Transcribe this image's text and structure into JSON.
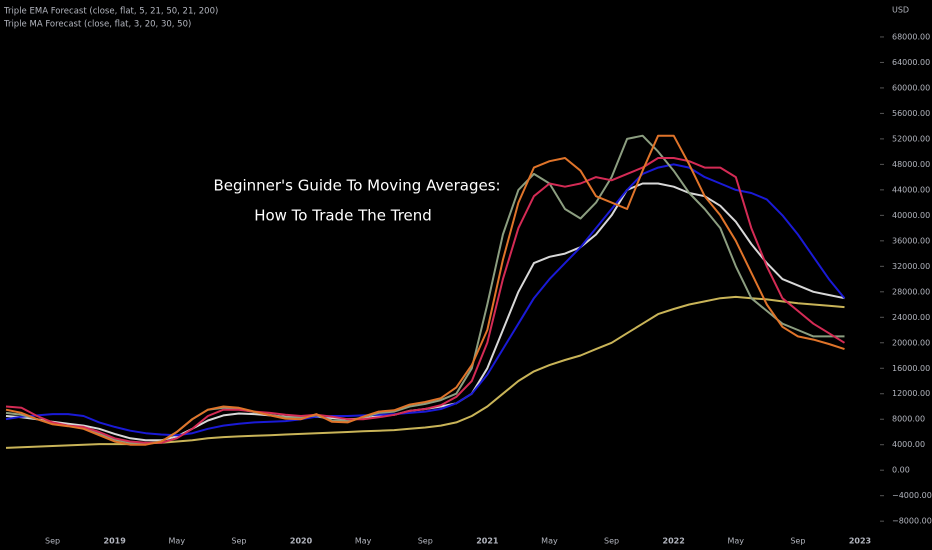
{
  "chart_data": {
    "type": "line",
    "indicators": [
      "Triple EMA Forecast (close, flat, 5, 21, 50, 21, 200)",
      "Triple MA Forecast (close, flat, 3, 20, 30, 50)"
    ],
    "annotations": [
      "Beginner's Guide To Moving Averages:",
      "How To Trade The Trend"
    ],
    "y_axis_label": "USD",
    "categories": [
      null,
      null,
      null,
      "Sep",
      null,
      null,
      null,
      "2019",
      null,
      null,
      null,
      "May",
      null,
      null,
      null,
      "Sep",
      null,
      null,
      null,
      "2020",
      null,
      null,
      null,
      "May",
      null,
      null,
      null,
      "Sep",
      null,
      null,
      null,
      "2021",
      null,
      null,
      null,
      "May",
      null,
      null,
      null,
      "Sep",
      null,
      null,
      null,
      "2022",
      null,
      null,
      null,
      "May",
      null,
      null,
      null,
      "Sep",
      null,
      null,
      null,
      "2023"
    ],
    "ylim": [
      -9700,
      73800
    ],
    "yticks": [
      {
        "value": -8000,
        "label": "−8000.00"
      },
      {
        "value": -4000,
        "label": "−4000.00"
      },
      {
        "value": 0,
        "label": "0.00"
      },
      {
        "value": 4000,
        "label": "4000.00"
      },
      {
        "value": 8000,
        "label": "8000.00"
      },
      {
        "value": 12000,
        "label": "12000.00"
      },
      {
        "value": 16000,
        "label": "16000.00"
      },
      {
        "value": 20000,
        "label": "20000.00"
      },
      {
        "value": 24000,
        "label": "24000.00"
      },
      {
        "value": 28000,
        "label": "28000.00"
      },
      {
        "value": 32000,
        "label": "32000.00"
      },
      {
        "value": 36000,
        "label": "36000.00"
      },
      {
        "value": 40000,
        "label": "40000.00"
      },
      {
        "value": 44000,
        "label": "44000.00"
      },
      {
        "value": 48000,
        "label": "48000.00"
      },
      {
        "value": 52000,
        "label": "52000.00"
      },
      {
        "value": 56000,
        "label": "56000.00"
      },
      {
        "value": 60000,
        "label": "60000.00"
      },
      {
        "value": 64000,
        "label": "64000.00"
      },
      {
        "value": 68000,
        "label": "68000.00"
      }
    ],
    "grid": false,
    "series": [
      {
        "color": "#c9b458",
        "values": [
          3500,
          3600,
          3700,
          3800,
          3900,
          4000,
          4100,
          4100,
          4100,
          4200,
          4300,
          4500,
          4700,
          5000,
          5200,
          5300,
          5400,
          5500,
          5600,
          5700,
          5800,
          5900,
          6000,
          6100,
          6200,
          6300,
          6500,
          6700,
          7000,
          7500,
          8500,
          10000,
          12000,
          14000,
          15500,
          16500,
          17300,
          18000,
          19000,
          20000,
          21500,
          23000,
          24500,
          25300,
          26000,
          26500,
          27000,
          27200,
          27000,
          26800,
          26500,
          26200,
          26000,
          25800,
          25600,
          null
        ]
      },
      {
        "color": "#d8d8d8",
        "values": [
          8500,
          8300,
          8000,
          7600,
          7300,
          7000,
          6500,
          5700,
          5000,
          4700,
          4700,
          5300,
          6500,
          7800,
          8600,
          8900,
          8800,
          8600,
          8400,
          8300,
          8400,
          8200,
          8000,
          8100,
          8500,
          8700,
          9300,
          9600,
          10000,
          10500,
          12000,
          16000,
          22000,
          28000,
          32500,
          33500,
          34000,
          35000,
          37000,
          40000,
          44000,
          45000,
          45000,
          44500,
          43500,
          43000,
          41500,
          39000,
          35500,
          32500,
          30000,
          29000,
          28000,
          27500,
          27000,
          null
        ]
      },
      {
        "color": "#1a1ad6",
        "values": [
          8000,
          8400,
          8600,
          8800,
          8800,
          8500,
          7500,
          6800,
          6200,
          5800,
          5600,
          5500,
          5800,
          6500,
          7000,
          7300,
          7500,
          7600,
          7700,
          8000,
          8400,
          8500,
          8500,
          8600,
          8700,
          8800,
          9000,
          9200,
          9600,
          10500,
          12000,
          15000,
          19000,
          23000,
          27000,
          30000,
          32500,
          35000,
          38000,
          41000,
          44000,
          46500,
          47500,
          48000,
          47500,
          46000,
          45000,
          44000,
          43500,
          42500,
          40000,
          37000,
          33500,
          30000,
          27000,
          null
        ]
      },
      {
        "color": "#8c9e80",
        "values": [
          9000,
          8700,
          8000,
          7300,
          7000,
          6700,
          5800,
          4800,
          4300,
          4200,
          4500,
          6000,
          8000,
          9500,
          9800,
          9600,
          9100,
          8700,
          8300,
          8300,
          8600,
          7800,
          7700,
          8300,
          9000,
          9200,
          10000,
          10400,
          11000,
          12000,
          16000,
          26000,
          37000,
          44000,
          46500,
          45000,
          41000,
          39500,
          42000,
          46000,
          52000,
          52500,
          50000,
          47000,
          43500,
          41000,
          38000,
          32000,
          27000,
          25000,
          23000,
          22000,
          21000,
          21000,
          21000,
          null
        ]
      },
      {
        "color": "#d42b55",
        "values": [
          10000,
          9800,
          8500,
          7500,
          7000,
          6800,
          6000,
          5000,
          4500,
          4300,
          4300,
          5000,
          6500,
          8500,
          9500,
          9500,
          9200,
          9000,
          8700,
          8500,
          8700,
          8400,
          8000,
          8000,
          8300,
          8700,
          9300,
          9600,
          10200,
          11500,
          14000,
          20000,
          30000,
          38000,
          43000,
          45000,
          44500,
          45000,
          46000,
          45500,
          46500,
          47500,
          49000,
          49000,
          48500,
          47500,
          47500,
          46000,
          38000,
          32000,
          27000,
          25000,
          23000,
          21500,
          20000,
          null
        ]
      },
      {
        "color": "#e0742a",
        "values": [
          9500,
          9000,
          8000,
          7200,
          6900,
          6500,
          5500,
          4500,
          4000,
          4000,
          4500,
          6000,
          8000,
          9500,
          10000,
          9800,
          9200,
          8600,
          8100,
          8000,
          8800,
          7600,
          7500,
          8400,
          9200,
          9400,
          10300,
          10700,
          11300,
          13000,
          16500,
          22000,
          33000,
          42000,
          47500,
          48500,
          49000,
          47000,
          43000,
          42000,
          41000,
          47000,
          52500,
          52500,
          48000,
          43000,
          40000,
          36000,
          31000,
          26000,
          22500,
          21000,
          20500,
          19800,
          19000,
          null
        ]
      }
    ]
  }
}
